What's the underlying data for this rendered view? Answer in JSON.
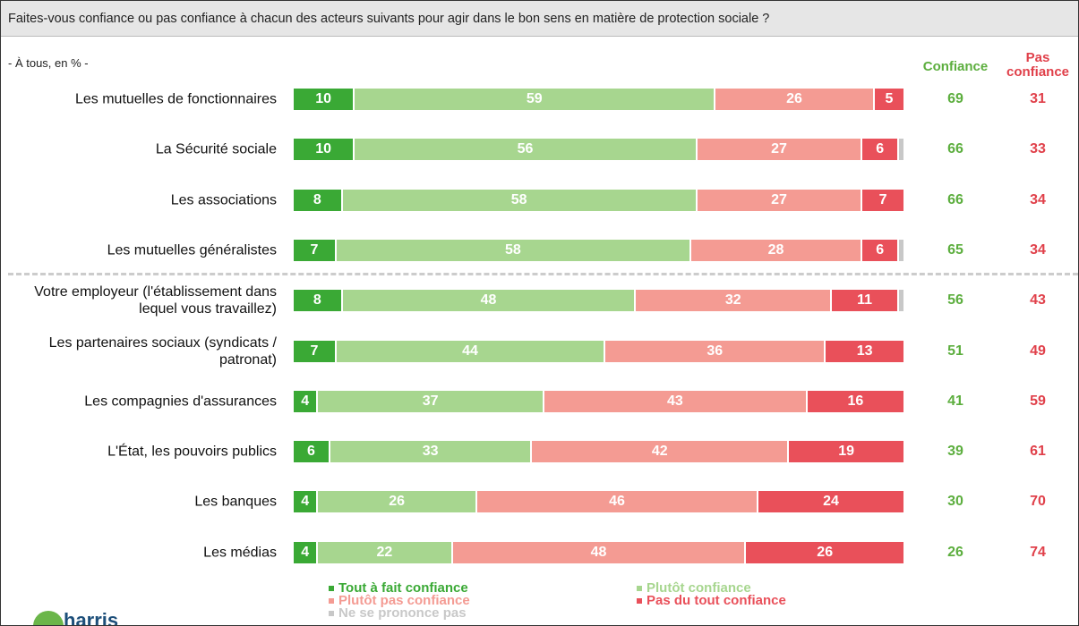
{
  "title": "Faites-vous confiance ou pas confiance à chacun des acteurs suivants pour agir dans le bon sens en matière de protection sociale ?",
  "logo": "harris",
  "chart_data": {
    "type": "stacked-bar-horizontal",
    "subtitle": "- À tous, en % -",
    "categories": [
      "Les mutuelles de fonctionnaires",
      "La Sécurité sociale",
      "Les associations",
      "Les mutuelles généralistes",
      "Votre employeur (l'établissement dans lequel vous travaillez)",
      "Les partenaires sociaux (syndicats / patronat)",
      "Les compagnies d'assurances",
      "L'État, les pouvoirs publics",
      "Les banques",
      "Les médias"
    ],
    "xlim": [
      0,
      100
    ],
    "series": [
      {
        "name": "Tout à fait confiance",
        "color": "#3aa935",
        "values": [
          10,
          10,
          8,
          7,
          8,
          7,
          4,
          6,
          4,
          4
        ]
      },
      {
        "name": "Plutôt confiance",
        "color": "#a7d68f",
        "values": [
          59,
          56,
          58,
          58,
          48,
          44,
          37,
          33,
          26,
          22
        ]
      },
      {
        "name": "Plutôt pas confiance",
        "color": "#f49b93",
        "values": [
          26,
          27,
          27,
          28,
          32,
          36,
          43,
          42,
          46,
          48
        ]
      },
      {
        "name": "Pas du tout confiance",
        "color": "#e9505a",
        "values": [
          5,
          6,
          7,
          6,
          11,
          13,
          16,
          19,
          24,
          26
        ]
      },
      {
        "name": "Ne se prononce pas",
        "color": "#c8c8c8",
        "show_values": false,
        "values": [
          0,
          1,
          0,
          1,
          1,
          0,
          0,
          0,
          0,
          0
        ]
      }
    ],
    "totals": [
      {
        "name": "Confiance",
        "color": "#5cae3e",
        "values": [
          69,
          66,
          66,
          65,
          56,
          51,
          41,
          39,
          30,
          26
        ]
      },
      {
        "name": "Pas confiance",
        "color": "#e0404a",
        "values": [
          31,
          33,
          34,
          34,
          43,
          49,
          59,
          61,
          70,
          74
        ]
      }
    ]
  }
}
